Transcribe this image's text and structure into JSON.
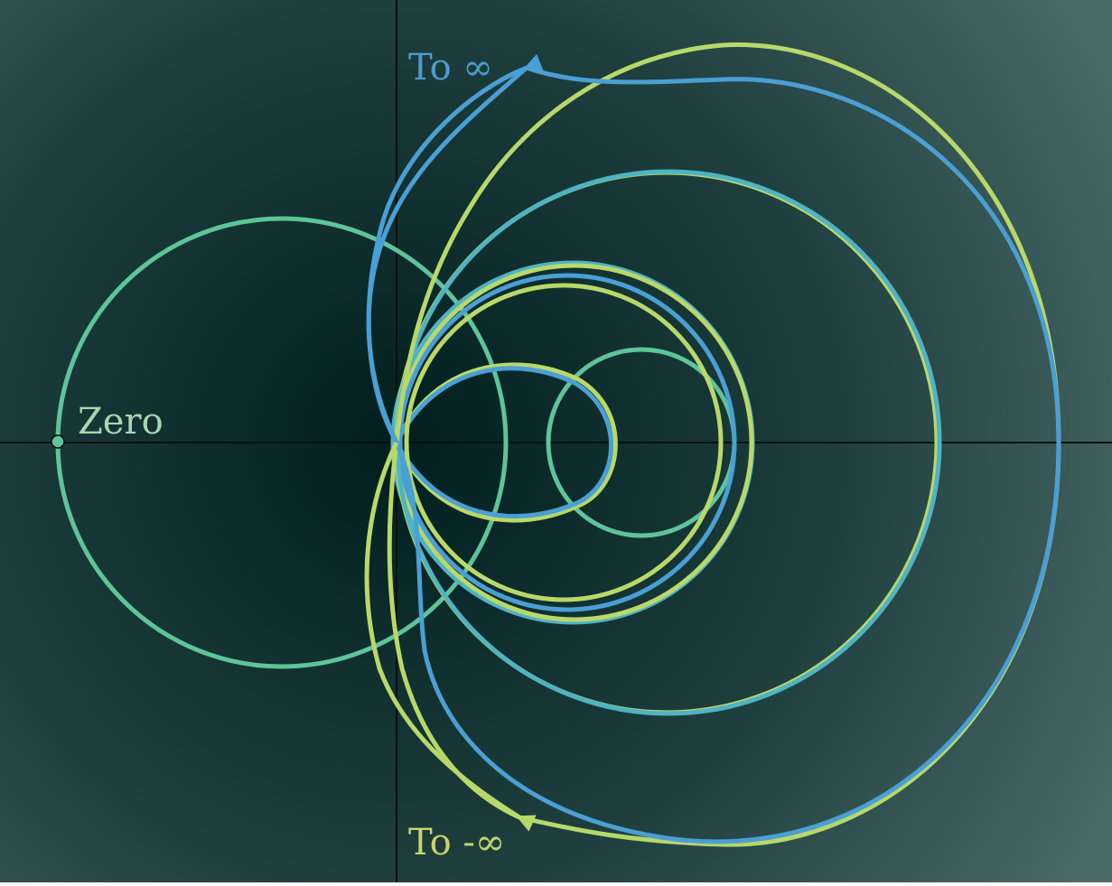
{
  "labels": {
    "zero": "Zero",
    "to_inf": "To ∞",
    "to_neg_inf": "To -∞"
  },
  "colors": {
    "background_center": "#021e1e",
    "background_edge": "#4a6b68",
    "axes": "#0b0f10",
    "teal": "#5ec49a",
    "lime": "#b9d86a",
    "blue": "#4a9fd4",
    "cyan": "#4fb3c3",
    "zero_label": "#a9d6b2",
    "to_inf_label": "#4d9bd0",
    "to_neg_inf_label": "#c9d36b"
  },
  "icons": {
    "arrow_up": "arrowhead-icon",
    "arrow_down": "arrowhead-icon"
  }
}
